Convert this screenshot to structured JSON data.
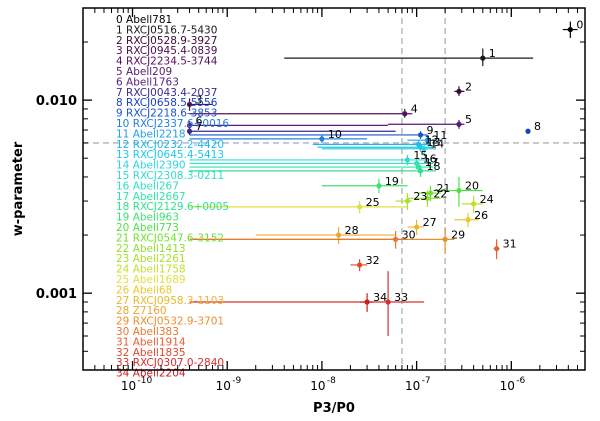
{
  "chart_data": {
    "type": "scatter",
    "title": "",
    "xlabel": "P3/P0",
    "ylabel": "w-parameter",
    "x_scale": "log",
    "y_scale": "log",
    "xlim": [
      3e-11,
      6e-06
    ],
    "ylim": [
      0.0004,
      0.03
    ],
    "x_ticks": [
      {
        "value": 1e-10,
        "label": "10",
        "exp": "-10"
      },
      {
        "value": 1e-09,
        "label": "10",
        "exp": "-9"
      },
      {
        "value": 1e-08,
        "label": "10",
        "exp": "-8"
      },
      {
        "value": 1e-07,
        "label": "10",
        "exp": "-7"
      },
      {
        "value": 1e-06,
        "label": "10",
        "exp": "-6"
      }
    ],
    "y_ticks": [
      {
        "value": 0.01,
        "label": "0.010"
      },
      {
        "value": 0.001,
        "label": "0.001"
      }
    ],
    "reference_lines": {
      "vertical": [
        7e-08,
        2e-07
      ],
      "horizontal": [
        0.006
      ]
    },
    "clusters": [
      {
        "id": "0",
        "name": "Abell781",
        "color": "#000000",
        "x": 4.2e-06,
        "xerr": [
          3.5e-06,
          5e-06
        ],
        "y": 0.0232,
        "yerr": [
          0.021,
          0.0255
        ]
      },
      {
        "id": "1",
        "name": "RXCJ0516.7-5430",
        "color": "#1a1a1a",
        "x": 5e-07,
        "xerr": [
          4e-09,
          1.7e-06
        ],
        "y": 0.0165,
        "yerr": [
          0.015,
          0.0185
        ]
      },
      {
        "id": "2",
        "name": "RXCJ0528.9-3927",
        "color": "#3a0a3a",
        "x": 2.8e-07,
        "xerr": [
          2.5e-07,
          3.2e-07
        ],
        "y": 0.0111,
        "yerr": [
          0.0105,
          0.0118
        ]
      },
      {
        "id": "3",
        "name": "RXCJ0945.4-0839",
        "color": "#4a1050",
        "x": 4e-10,
        "xerr": [
          4e-10,
          7e-10
        ],
        "y": 0.0095,
        "yerr": [
          0.0088,
          0.0102
        ]
      },
      {
        "id": "4",
        "name": "RXCJ2234.5-3744",
        "color": "#55105e",
        "x": 7.5e-08,
        "xerr": [
          4e-10,
          9e-08
        ],
        "y": 0.0085,
        "yerr": [
          0.0081,
          0.009
        ]
      },
      {
        "id": "5",
        "name": "Abell209",
        "color": "#5a1a70",
        "x": 2.8e-07,
        "xerr": [
          5e-08,
          3.2e-07
        ],
        "y": 0.0075,
        "yerr": [
          0.0071,
          0.0079
        ]
      },
      {
        "id": "6",
        "name": "Abell1763",
        "color": "#5a1e80",
        "x": 4e-10,
        "xerr": [
          4e-10,
          5e-08
        ],
        "y": 0.0074,
        "yerr": [
          0.007,
          0.0078
        ]
      },
      {
        "id": "7",
        "name": "RXCJ0043.4-2037",
        "color": "#3a2a90",
        "x": 4e-10,
        "xerr": [
          4e-10,
          6e-08
        ],
        "y": 0.0069,
        "yerr": [
          0.0066,
          0.0072
        ]
      },
      {
        "id": "8",
        "name": "RXCJ0658.5-5556",
        "color": "#1a40c0",
        "x": 1.5e-06,
        "xerr": [
          1.45e-06,
          1.55e-06
        ],
        "y": 0.0069,
        "yerr": [
          0.0067,
          0.0071
        ]
      },
      {
        "id": "9",
        "name": "RXCJ2218.6-3853",
        "color": "#1a55d0",
        "x": 1.1e-07,
        "xerr": [
          4e-10,
          1.3e-07
        ],
        "y": 0.0066,
        "yerr": [
          0.0063,
          0.0069
        ]
      },
      {
        "id": "10",
        "name": "RXCJ2337.6+0016",
        "color": "#2080e0",
        "x": 1e-08,
        "xerr": [
          4e-10,
          3e-08
        ],
        "y": 0.0063,
        "yerr": [
          0.006,
          0.0066
        ]
      },
      {
        "id": "11",
        "name": "Abell2218",
        "color": "#20a0e8",
        "x": 1.3e-07,
        "xerr": [
          8e-08,
          1.8e-07
        ],
        "y": 0.0062,
        "yerr": [
          0.0059,
          0.0065
        ]
      },
      {
        "id": "12",
        "name": "RXCJ0232.2-4420",
        "color": "#20b8ea",
        "x": 1.05e-07,
        "xerr": [
          8e-09,
          1.4e-07
        ],
        "y": 0.0059,
        "yerr": [
          0.0056,
          0.0062
        ]
      },
      {
        "id": "13",
        "name": "RXCJ0645.4-5413",
        "color": "#20c8e8",
        "x": 1.1e-07,
        "xerr": [
          9e-09,
          1.5e-07
        ],
        "y": 0.0057,
        "yerr": [
          0.0054,
          0.006
        ]
      },
      {
        "id": "14",
        "name": "Abell2390",
        "color": "#30d4e0",
        "x": 1.2e-07,
        "xerr": [
          1e-08,
          1.6e-07
        ],
        "y": 0.0056,
        "yerr": [
          0.0053,
          0.0059
        ]
      },
      {
        "id": "15",
        "name": "RXCJ2308.3-0211",
        "color": "#30dcd0",
        "x": 8e-08,
        "xerr": [
          4e-10,
          1.4e-07
        ],
        "y": 0.0049,
        "yerr": [
          0.0046,
          0.0052
        ]
      },
      {
        "id": "16",
        "name": "Abell267",
        "color": "#30e0c0",
        "x": 1e-07,
        "xerr": [
          4e-10,
          1.5e-07
        ],
        "y": 0.0047,
        "yerr": [
          0.0044,
          0.005
        ]
      },
      {
        "id": "17",
        "name": "Abell2667",
        "color": "#30e4a8",
        "x": 1.05e-07,
        "xerr": [
          4e-10,
          1.5e-07
        ],
        "y": 0.0045,
        "yerr": [
          0.0042,
          0.0048
        ]
      },
      {
        "id": "18",
        "name": "RXCJ2129.6+0005",
        "color": "#30e090",
        "x": 1.1e-07,
        "xerr": [
          4e-10,
          1.6e-07
        ],
        "y": 0.0043,
        "yerr": [
          0.004,
          0.0046
        ]
      },
      {
        "id": "19",
        "name": "Abell963",
        "color": "#40e070",
        "x": 4e-08,
        "xerr": [
          1e-08,
          8e-08
        ],
        "y": 0.0036,
        "yerr": [
          0.0033,
          0.0039
        ]
      },
      {
        "id": "20",
        "name": "Abell773",
        "color": "#50e040",
        "x": 2.8e-07,
        "xerr": [
          1.5e-07,
          5e-07
        ],
        "y": 0.0034,
        "yerr": [
          0.0028,
          0.004
        ]
      },
      {
        "id": "21",
        "name": "RXCJ0547.6-3152",
        "color": "#70e030",
        "x": 1.4e-07,
        "xerr": [
          1e-07,
          1.8e-07
        ],
        "y": 0.0033,
        "yerr": [
          0.003,
          0.0036
        ]
      },
      {
        "id": "22",
        "name": "Abell1413",
        "color": "#90e030",
        "x": 1.3e-07,
        "xerr": [
          8e-08,
          1.8e-07
        ],
        "y": 0.0031,
        "yerr": [
          0.0028,
          0.0034
        ]
      },
      {
        "id": "23",
        "name": "Abell2261",
        "color": "#a8e030",
        "x": 8e-08,
        "xerr": [
          6e-08,
          9e-08
        ],
        "y": 0.003,
        "yerr": [
          0.0027,
          0.0033
        ]
      },
      {
        "id": "24",
        "name": "Abell1758",
        "color": "#c0e030",
        "x": 4e-07,
        "xerr": [
          3e-07,
          5e-07
        ],
        "y": 0.0029,
        "yerr": [
          0.0026,
          0.0032
        ]
      },
      {
        "id": "25",
        "name": "Abell1689",
        "color": "#e0e040",
        "x": 2.5e-08,
        "xerr": [
          4e-10,
          8e-08
        ],
        "y": 0.0028,
        "yerr": [
          0.0026,
          0.003
        ]
      },
      {
        "id": "26",
        "name": "Abell68",
        "color": "#e8c830",
        "x": 3.5e-07,
        "xerr": [
          2.5e-07,
          4.5e-07
        ],
        "y": 0.0024,
        "yerr": [
          0.0022,
          0.0026
        ]
      },
      {
        "id": "27",
        "name": "RXCJ0958.3-1103",
        "color": "#e8b830",
        "x": 1e-07,
        "xerr": [
          8e-08,
          1.2e-07
        ],
        "y": 0.0022,
        "yerr": [
          0.002,
          0.0024
        ]
      },
      {
        "id": "28",
        "name": "Z7160",
        "color": "#e8a830",
        "x": 1.5e-08,
        "xerr": [
          2e-09,
          6e-08
        ],
        "y": 0.002,
        "yerr": [
          0.0018,
          0.0022
        ]
      },
      {
        "id": "29",
        "name": "RXCJ0532.9-3701",
        "color": "#e89030",
        "x": 2e-07,
        "xerr": [
          4e-10,
          2.5e-07
        ],
        "y": 0.0019,
        "yerr": [
          0.0016,
          0.0022
        ]
      },
      {
        "id": "30",
        "name": "Abell383",
        "color": "#e87830",
        "x": 6e-08,
        "xerr": [
          4e-10,
          8e-08
        ],
        "y": 0.0019,
        "yerr": [
          0.0017,
          0.0021
        ]
      },
      {
        "id": "31",
        "name": "Abell1914",
        "color": "#e86030",
        "x": 7e-07,
        "xerr": [
          6.5e-07,
          7.5e-07
        ],
        "y": 0.0017,
        "yerr": [
          0.0015,
          0.0019
        ]
      },
      {
        "id": "32",
        "name": "Abell1835",
        "color": "#e04a30",
        "x": 2.5e-08,
        "xerr": [
          2e-08,
          3e-08
        ],
        "y": 0.0014,
        "yerr": [
          0.0013,
          0.0015
        ]
      },
      {
        "id": "33",
        "name": "RXCJ0307.0-2840",
        "color": "#d83030",
        "x": 5e-08,
        "xerr": [
          4e-10,
          1.2e-07
        ],
        "y": 0.0009,
        "yerr": [
          0.0006,
          0.0013
        ]
      },
      {
        "id": "34",
        "name": "Abell2204",
        "color": "#c82020",
        "x": 3e-08,
        "xerr": [
          2.5e-08,
          3.5e-08
        ],
        "y": 0.0009,
        "yerr": [
          0.0008,
          0.001
        ]
      }
    ]
  }
}
